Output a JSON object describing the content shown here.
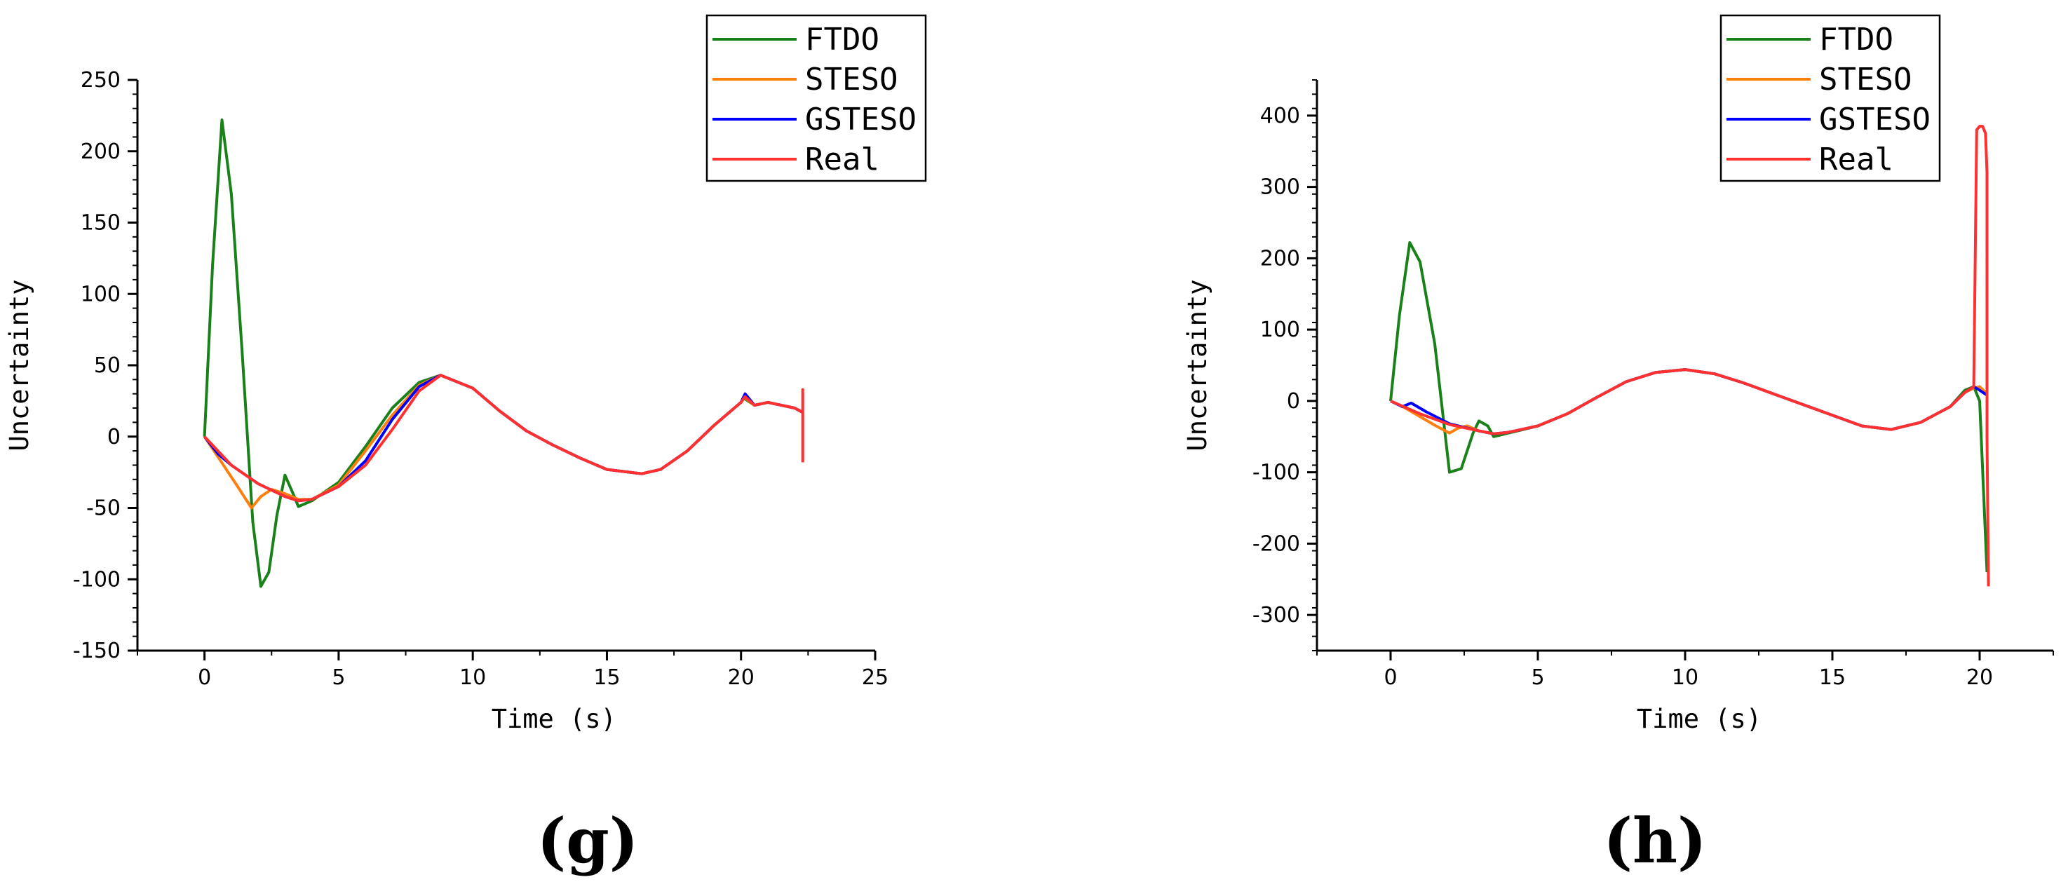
{
  "colors": {
    "FTDO": "#1a801a",
    "STESO": "#ff7f0e",
    "GSTESO": "#0000ff",
    "Real": "#ff3030"
  },
  "chart_data": [
    {
      "type": "line",
      "panel": "(g)",
      "xlabel": "Time (s)",
      "ylabel": "Uncertainty",
      "xlim": [
        -2.5,
        25
      ],
      "ylim": [
        -150,
        250
      ],
      "xticks": [
        0,
        5,
        10,
        15,
        20,
        25
      ],
      "xtick_labels": [
        "0",
        "5",
        "10",
        "15",
        "20",
        "25"
      ],
      "yticks": [
        -150,
        -100,
        -50,
        0,
        50,
        100,
        150,
        200,
        250
      ],
      "ytick_labels": [
        "-150",
        "-100",
        "-50",
        "0",
        "50",
        "100",
        "150",
        "200",
        "250"
      ],
      "legend": [
        "FTDO",
        "STESO",
        "GSTESO",
        "Real"
      ],
      "legend_position": "top-right",
      "series": [
        {
          "name": "FTDO",
          "x": [
            0,
            0.3,
            0.65,
            1.0,
            1.4,
            1.8,
            2.1,
            2.4,
            2.7,
            3.0,
            3.3,
            3.5,
            4,
            5,
            6,
            7,
            8,
            8.8,
            10,
            11,
            12,
            13,
            14,
            15,
            16.3,
            17,
            18,
            19,
            20,
            20.1,
            20.5,
            21,
            22,
            22.3
          ],
          "y": [
            0,
            120,
            222,
            170,
            60,
            -60,
            -105,
            -95,
            -55,
            -27,
            -40,
            -49,
            -45,
            -32,
            -7,
            20,
            38,
            43,
            34,
            18,
            4,
            -6,
            -15,
            -23,
            -26,
            -23,
            -10,
            8,
            24,
            27,
            22,
            24,
            20,
            17
          ]
        },
        {
          "name": "STESO",
          "x": [
            0,
            0.6,
            1.2,
            1.75,
            2.1,
            2.5,
            3.0,
            3.5,
            4,
            5,
            6,
            7,
            8,
            8.8,
            10,
            11,
            12,
            13,
            14,
            15,
            16.3,
            17,
            18,
            19,
            20,
            20.1,
            20.5,
            21,
            22,
            22.3
          ],
          "y": [
            0,
            -17,
            -34,
            -50,
            -42,
            -37,
            -40,
            -44,
            -44,
            -34,
            -10,
            15,
            36,
            43,
            34,
            18,
            4,
            -6,
            -15,
            -23,
            -26,
            -23,
            -10,
            8,
            24,
            28,
            22,
            24,
            20,
            17
          ]
        },
        {
          "name": "GSTESO",
          "x": [
            0,
            0.5,
            1,
            2,
            3,
            3.5,
            4,
            5,
            6,
            7,
            8,
            8.8,
            10,
            11,
            12,
            13,
            14,
            15,
            16.3,
            17,
            18,
            19,
            20,
            20.15,
            20.5,
            21,
            22,
            22.3
          ],
          "y": [
            0,
            -12,
            -20,
            -33,
            -42,
            -45,
            -44,
            -35,
            -17,
            12,
            35,
            43,
            34,
            18,
            4,
            -6,
            -15,
            -23,
            -26,
            -23,
            -10,
            8,
            24,
            30,
            22,
            24,
            20,
            17
          ]
        },
        {
          "name": "Real",
          "x": [
            0,
            0.5,
            1,
            2,
            3,
            3.5,
            4,
            5,
            6,
            7,
            8,
            8.8,
            10,
            11,
            12,
            13,
            14,
            15,
            16.3,
            17,
            18,
            19,
            20,
            20.15,
            20.5,
            21,
            22,
            22.3,
            22.3,
            22.3
          ],
          "y": [
            0,
            -10,
            -20,
            -33,
            -42,
            -45,
            -44,
            -35,
            -20,
            5,
            32,
            43,
            34,
            18,
            4,
            -6,
            -15,
            -23,
            -26,
            -23,
            -10,
            8,
            24,
            28,
            22,
            24,
            20,
            17,
            33,
            -18
          ]
        }
      ]
    },
    {
      "type": "line",
      "panel": "(h)",
      "xlabel": "Time (s)",
      "ylabel": "Uncertainty",
      "xlim": [
        -2.5,
        22.5
      ],
      "ylim": [
        -350,
        450
      ],
      "xticks": [
        0,
        5,
        10,
        15,
        20
      ],
      "xtick_labels": [
        "0",
        "5",
        "10",
        "15",
        "20"
      ],
      "yticks": [
        -300,
        -200,
        -100,
        0,
        100,
        200,
        300,
        400
      ],
      "ytick_labels": [
        "-300",
        "-200",
        "-100",
        "0",
        "100",
        "200",
        "300",
        "400"
      ],
      "legend": [
        "FTDO",
        "STESO",
        "GSTESO",
        "Real"
      ],
      "legend_position": "top-right",
      "series": [
        {
          "name": "FTDO",
          "x": [
            0,
            0.3,
            0.65,
            1.0,
            1.5,
            2.0,
            2.4,
            2.8,
            3.0,
            3.3,
            3.5,
            4,
            5,
            6,
            7,
            8,
            9,
            10,
            11,
            12,
            13,
            14,
            15,
            16,
            17,
            18,
            19,
            19.5,
            19.8,
            20.0,
            20.25
          ],
          "y": [
            0,
            120,
            222,
            195,
            80,
            -100,
            -95,
            -45,
            -28,
            -35,
            -50,
            -45,
            -35,
            -18,
            5,
            27,
            40,
            44,
            38,
            25,
            10,
            -5,
            -20,
            -35,
            -40,
            -30,
            -8,
            15,
            20,
            0,
            -240
          ]
        },
        {
          "name": "STESO",
          "x": [
            0,
            0.5,
            1,
            1.5,
            2,
            2.3,
            2.6,
            3,
            3.5,
            4,
            5,
            6,
            7,
            8,
            9,
            10,
            11,
            12,
            13,
            14,
            15,
            16,
            17,
            18,
            19,
            19.5,
            19.8,
            20.0,
            20.25
          ],
          "y": [
            0,
            -10,
            -22,
            -34,
            -45,
            -38,
            -35,
            -42,
            -46,
            -44,
            -35,
            -18,
            5,
            27,
            40,
            44,
            38,
            25,
            10,
            -5,
            -20,
            -35,
            -40,
            -30,
            -8,
            12,
            18,
            20,
            10
          ]
        },
        {
          "name": "GSTESO",
          "x": [
            0,
            0.4,
            0.7,
            1.2,
            2,
            3,
            3.5,
            4,
            5,
            6,
            7,
            8,
            9,
            10,
            11,
            12,
            13,
            14,
            15,
            16,
            17,
            18,
            19,
            19.5,
            19.8,
            20.0,
            20.25
          ],
          "y": [
            0,
            -8,
            -3,
            -15,
            -32,
            -42,
            -46,
            -44,
            -35,
            -18,
            5,
            27,
            40,
            44,
            38,
            25,
            10,
            -5,
            -20,
            -35,
            -40,
            -30,
            -8,
            12,
            20,
            15,
            8
          ]
        },
        {
          "name": "Real",
          "x": [
            0,
            1,
            2,
            3,
            3.5,
            4,
            5,
            6,
            7,
            8,
            9,
            10,
            11,
            12,
            13,
            14,
            15,
            16,
            17,
            18,
            19,
            19.5,
            19.8,
            19.85,
            19.9,
            20.0,
            20.1,
            20.2,
            20.25,
            20.25,
            20.3
          ],
          "y": [
            0,
            -18,
            -33,
            -42,
            -46,
            -44,
            -35,
            -18,
            5,
            27,
            40,
            44,
            38,
            25,
            10,
            -5,
            -20,
            -35,
            -40,
            -30,
            -8,
            12,
            20,
            200,
            380,
            385,
            385,
            375,
            320,
            -50,
            -260
          ]
        }
      ]
    }
  ]
}
